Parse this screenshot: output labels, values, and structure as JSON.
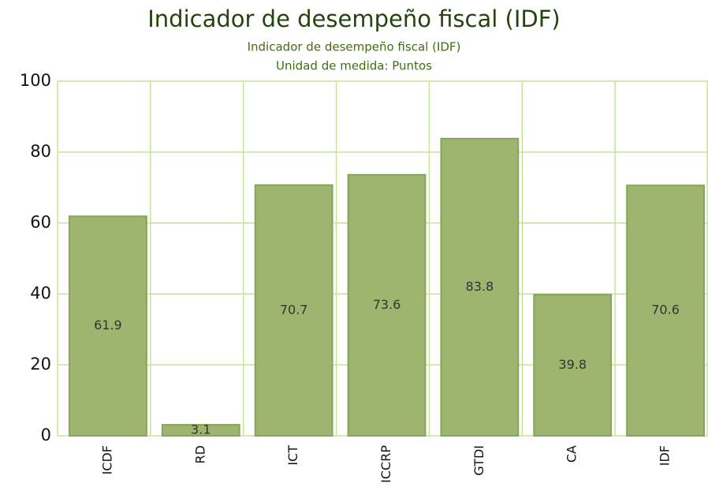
{
  "chart_data": {
    "type": "bar",
    "title": "Indicador de desempeño fiscal (IDF)",
    "subtitle": [
      "Indicador de desempeño fiscal (IDF)",
      "Unidad de medida: Puntos"
    ],
    "categories": [
      "ICDF",
      "RD",
      "ICT",
      "ICCRP",
      "GTDI",
      "CA",
      "IDF"
    ],
    "values": [
      61.9,
      3.1,
      70.7,
      73.6,
      83.8,
      39.8,
      70.6
    ],
    "color": "#9db56f",
    "ylim": [
      0,
      100
    ],
    "yticks": [
      0,
      20,
      40,
      60,
      80,
      100
    ],
    "grid": true
  }
}
